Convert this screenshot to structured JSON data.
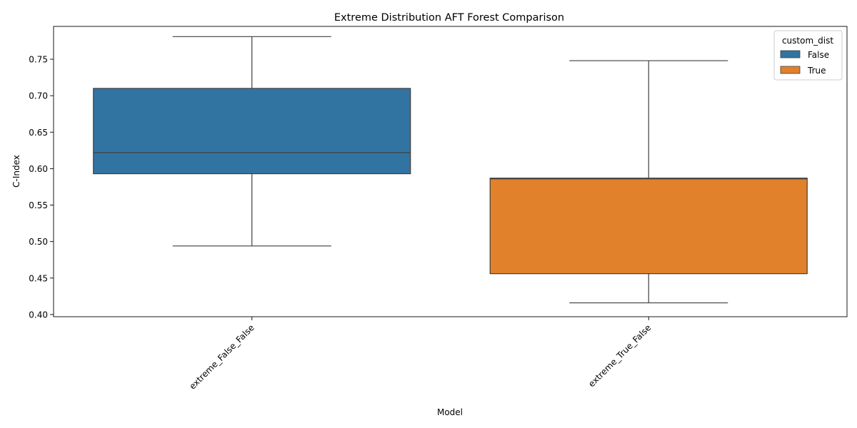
{
  "chart_data": {
    "type": "box",
    "title": "Extreme Distribution AFT Forest Comparison",
    "xlabel": "Model",
    "ylabel": "C-Index",
    "ylim": [
      0.397,
      0.795
    ],
    "yticks": [
      "0.40",
      "0.45",
      "0.50",
      "0.55",
      "0.60",
      "0.65",
      "0.70",
      "0.75"
    ],
    "grid": false,
    "legend": {
      "title": "custom_dist",
      "placement": "top-right",
      "entries": [
        {
          "label": "False",
          "color": "#3274a1"
        },
        {
          "label": "True",
          "color": "#e1812c"
        }
      ]
    },
    "categories": [
      "extreme_False_False",
      "extreme_True_False"
    ],
    "boxes": [
      {
        "category": "extreme_False_False",
        "group": "False",
        "color": "#3274a1",
        "whisker_low": 0.494,
        "q1": 0.593,
        "median": 0.622,
        "q3": 0.71,
        "whisker_high": 0.781
      },
      {
        "category": "extreme_True_False",
        "group": "True",
        "color": "#e1812c",
        "whisker_low": 0.416,
        "q1": 0.456,
        "median": 0.586,
        "q3": 0.587,
        "whisker_high": 0.748
      }
    ]
  }
}
